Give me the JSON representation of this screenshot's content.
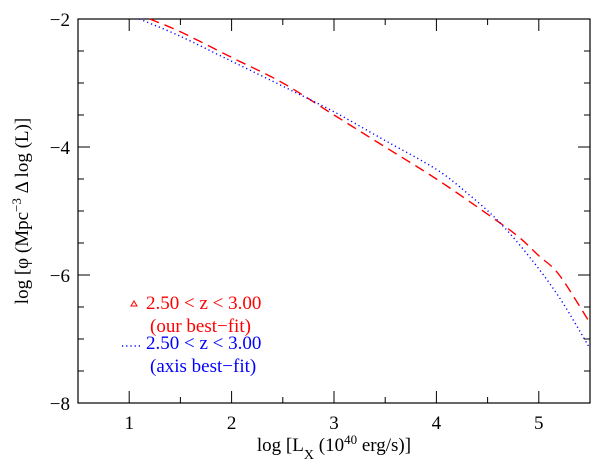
{
  "chart_data": {
    "type": "line",
    "xlabel_parts": {
      "pre": "log [L",
      "sub": "X",
      "mid": " (10",
      "sup": "40",
      "post": " erg/s)]"
    },
    "ylabel_parts": {
      "pre": "log [φ (Mpc",
      "sup": "−3",
      "post": " Δ log (L)]"
    },
    "xlim": [
      0.5,
      5.5
    ],
    "ylim": [
      -8,
      -2
    ],
    "x_ticks": [
      1,
      2,
      3,
      4,
      5
    ],
    "y_ticks": [
      -8,
      -6,
      -4,
      -2
    ],
    "x_tick_labels": [
      "1",
      "2",
      "3",
      "4",
      "5"
    ],
    "y_tick_labels": [
      "−8",
      "−6",
      "−4",
      "−2"
    ],
    "grid": false,
    "legend_position": "lower-left",
    "series": [
      {
        "label": "2.50 < z <  3.00",
        "sublabel": "(our best−fit)",
        "color": "#ff0000",
        "style": "dashed",
        "marker": "triangle",
        "x": [
          1.2,
          1.5,
          2.0,
          2.5,
          3.0,
          3.5,
          4.0,
          4.5,
          4.8,
          5.0,
          5.2,
          5.5
        ],
        "y": [
          -2.0,
          -2.2,
          -2.6,
          -3.0,
          -3.5,
          -4.0,
          -4.5,
          -5.05,
          -5.4,
          -5.7,
          -6.0,
          -6.75
        ]
      },
      {
        "label": "2.50 < z <  3.00",
        "sublabel": "(axis best−fit)",
        "color": "#0000ff",
        "style": "dotted",
        "marker": "none",
        "x": [
          1.1,
          1.5,
          2.0,
          2.5,
          3.0,
          3.5,
          4.0,
          4.3,
          4.6,
          4.9,
          5.2,
          5.5
        ],
        "y": [
          -2.0,
          -2.27,
          -2.66,
          -3.05,
          -3.45,
          -3.9,
          -4.35,
          -4.72,
          -5.15,
          -5.7,
          -6.35,
          -7.15
        ]
      }
    ]
  }
}
